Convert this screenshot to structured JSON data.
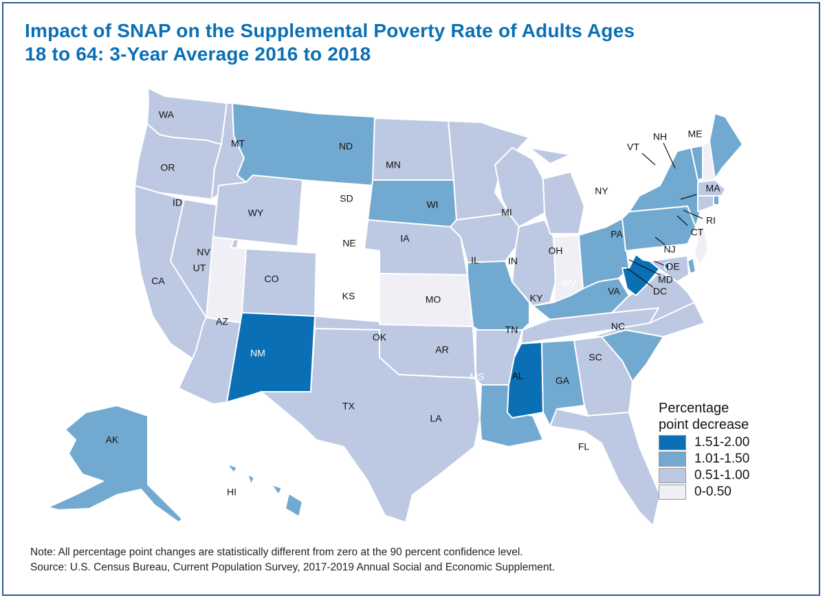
{
  "title": {
    "line1": "Impact of SNAP on the Supplemental Poverty Rate of Adults Ages",
    "line2": "18 to 64: 3-Year Average 2016 to 2018"
  },
  "chart_data": {
    "type": "choropleth",
    "title": "Impact of SNAP on the Supplemental Poverty Rate of Adults Ages 18 to 64: 3-Year Average 2016 to 2018",
    "measure": "Percentage point decrease",
    "legend_placement": "bottom-right",
    "bins": [
      {
        "label": "1.51-2.00",
        "min": 1.51,
        "max": 2.0,
        "color": "#0a6fb4"
      },
      {
        "label": "1.01-1.50",
        "min": 1.01,
        "max": 1.5,
        "color": "#72a9d0"
      },
      {
        "label": "0.51-1.00",
        "min": 0.51,
        "max": 1.0,
        "color": "#bdc9e2"
      },
      {
        "label": "0-0.50",
        "min": 0,
        "max": 0.5,
        "color": "#f0eff6"
      }
    ],
    "states": {
      "WA": "0.51-1.00",
      "OR": "0.51-1.00",
      "CA": "0.51-1.00",
      "NV": "0.51-1.00",
      "ID": "0.51-1.00",
      "MT": "1.01-1.50",
      "WY": "0.51-1.00",
      "UT": "0-0.50",
      "AZ": "0.51-1.00",
      "CO": "0.51-1.00",
      "NM": "1.51-2.00",
      "ND": "0.51-1.00",
      "SD": "1.01-1.50",
      "NE": "0.51-1.00",
      "KS": "0-0.50",
      "OK": "0.51-1.00",
      "TX": "0.51-1.00",
      "MN": "0.51-1.00",
      "IA": "0.51-1.00",
      "MO": "1.01-1.50",
      "AR": "0.51-1.00",
      "LA": "1.01-1.50",
      "WI": "0.51-1.00",
      "IL": "0.51-1.00",
      "MI": "0.51-1.00",
      "IN": "0-0.50",
      "OH": "1.01-1.50",
      "KY": "1.01-1.50",
      "TN": "0.51-1.00",
      "MS": "1.51-2.00",
      "AL": "1.01-1.50",
      "GA": "0.51-1.00",
      "FL": "0.51-1.00",
      "SC": "1.01-1.50",
      "NC": "0.51-1.00",
      "VA": "0.51-1.00",
      "WV": "1.51-2.00",
      "PA": "1.01-1.50",
      "NY": "1.01-1.50",
      "VT": "1.01-1.50",
      "NH": "0-0.50",
      "ME": "1.01-1.50",
      "MA": "0.51-1.00",
      "RI": "1.01-1.50",
      "CT": "0.51-1.00",
      "NJ": "0-0.50",
      "DE": "1.01-1.50",
      "MD": "0.51-1.00",
      "DC": "1.51-2.00",
      "AK": "1.01-1.50",
      "HI": "1.01-1.50"
    }
  },
  "legend": {
    "title_line1": "Percentage",
    "title_line2": "point decrease",
    "items": [
      "1.51-2.00",
      "1.01-1.50",
      "0.51-1.00",
      "0-0.50"
    ]
  },
  "notes": {
    "note": "Note: All percentage point changes are statistically different from zero at the 90 percent confidence level.",
    "source": "Source: U.S. Census Bureau, Current Population Survey, 2017-2019 Annual Social and Economic Supplement."
  }
}
